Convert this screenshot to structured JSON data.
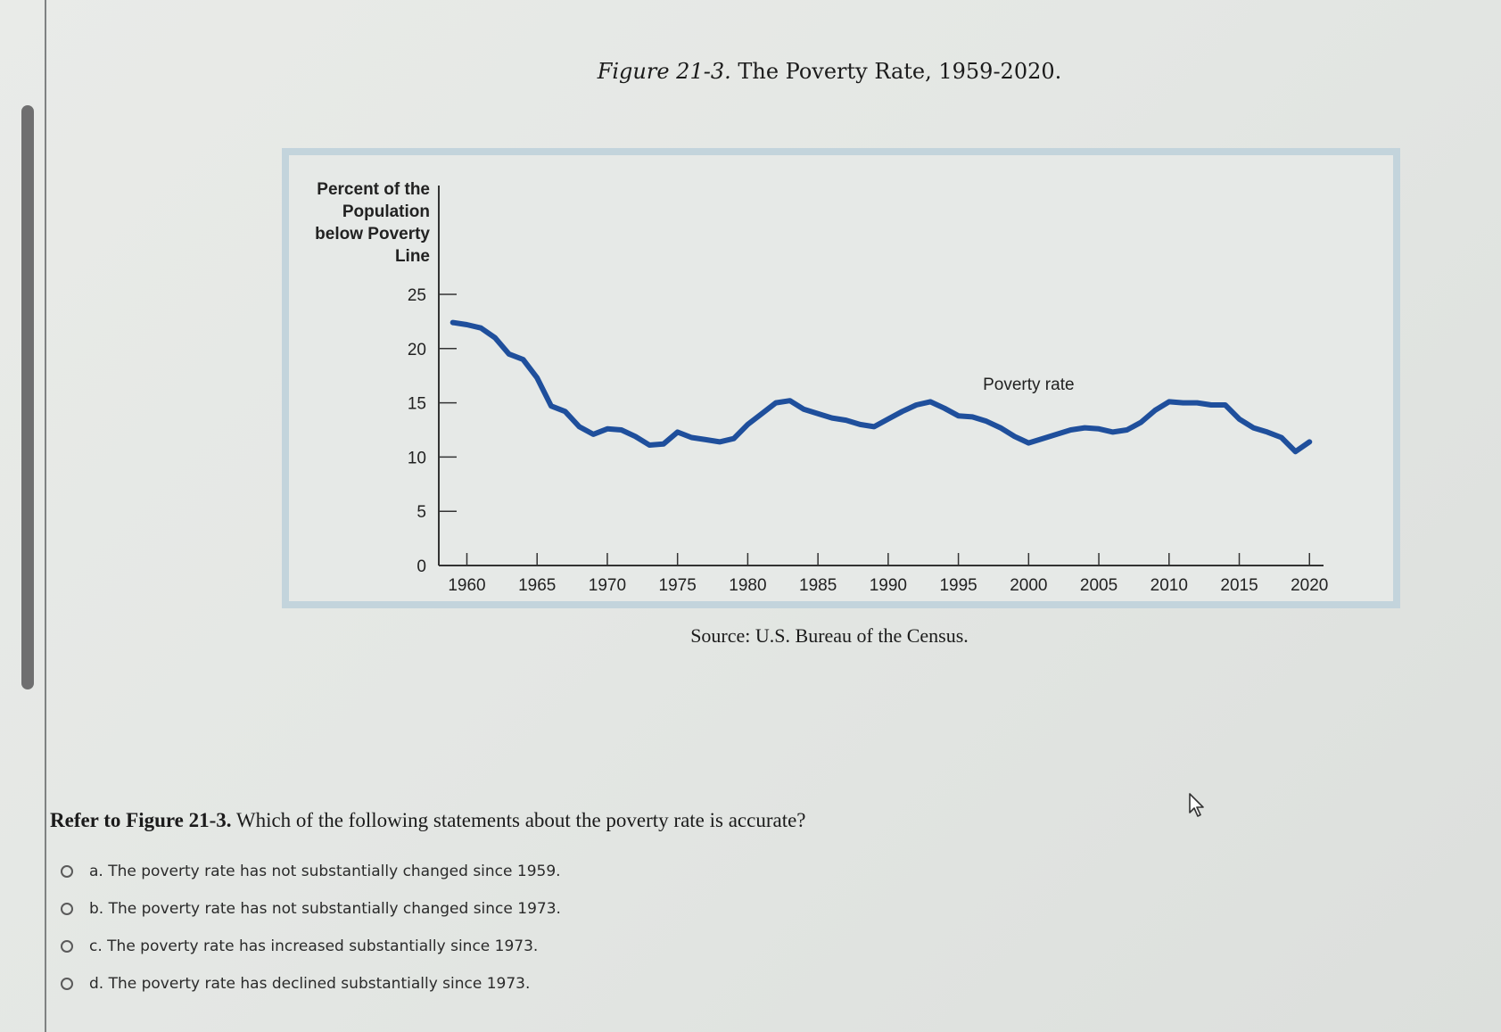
{
  "figure": {
    "title_label": "Figure 21-3.",
    "title_text": " The Poverty Rate, 1959-2020.",
    "source": "Source: U.S. Bureau of the Census."
  },
  "chart_data": {
    "type": "line",
    "ylabel": [
      "Percent of the",
      "Population",
      "below Poverty",
      "Line"
    ],
    "yticks": [
      0,
      5,
      10,
      15,
      20,
      25
    ],
    "xticks": [
      1960,
      1965,
      1970,
      1975,
      1980,
      1985,
      1990,
      1995,
      2000,
      2005,
      2010,
      2015,
      2020
    ],
    "xlim": [
      1958,
      2021
    ],
    "ylim": [
      0,
      25
    ],
    "series": [
      {
        "name": "Poverty rate",
        "color": "#1f4f9c",
        "x": [
          1959,
          1960,
          1961,
          1962,
          1963,
          1964,
          1965,
          1966,
          1967,
          1968,
          1969,
          1970,
          1971,
          1972,
          1973,
          1974,
          1975,
          1976,
          1977,
          1978,
          1979,
          1980,
          1981,
          1982,
          1983,
          1984,
          1985,
          1986,
          1987,
          1988,
          1989,
          1990,
          1991,
          1992,
          1993,
          1994,
          1995,
          1996,
          1997,
          1998,
          1999,
          2000,
          2001,
          2002,
          2003,
          2004,
          2005,
          2006,
          2007,
          2008,
          2009,
          2010,
          2011,
          2012,
          2013,
          2014,
          2015,
          2016,
          2017,
          2018,
          2019,
          2020
        ],
        "y": [
          22.4,
          22.2,
          21.9,
          21.0,
          19.5,
          19.0,
          17.3,
          14.7,
          14.2,
          12.8,
          12.1,
          12.6,
          12.5,
          11.9,
          11.1,
          11.2,
          12.3,
          11.8,
          11.6,
          11.4,
          11.7,
          13.0,
          14.0,
          15.0,
          15.2,
          14.4,
          14.0,
          13.6,
          13.4,
          13.0,
          12.8,
          13.5,
          14.2,
          14.8,
          15.1,
          14.5,
          13.8,
          13.7,
          13.3,
          12.7,
          11.9,
          11.3,
          11.7,
          12.1,
          12.5,
          12.7,
          12.6,
          12.3,
          12.5,
          13.2,
          14.3,
          15.1,
          15.0,
          15.0,
          14.8,
          14.8,
          13.5,
          12.7,
          12.3,
          11.8,
          10.5,
          11.4
        ]
      }
    ],
    "annotation": "Poverty rate"
  },
  "question": {
    "ref": "Refer to Figure 21-3.",
    "text": " Which of the following statements about the poverty rate is accurate?"
  },
  "options": [
    "a. The poverty rate has not substantially changed since 1959.",
    "b. The poverty rate has not substantially changed since 1973.",
    "c. The poverty rate has increased substantially since 1973.",
    "d. The poverty rate has declined substantially since 1973."
  ]
}
